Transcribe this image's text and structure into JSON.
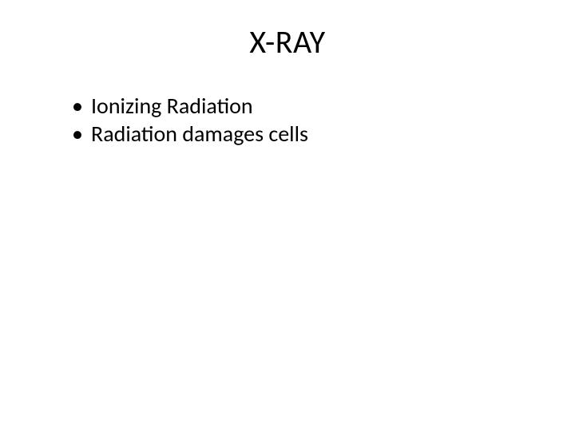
{
  "slide": {
    "title": "X-RAY",
    "bullets": [
      "Ionizing Radiation",
      "Radiation damages cells"
    ],
    "styling": {
      "background_color": "#ffffff",
      "title_color": "#000000",
      "title_fontsize": 40,
      "title_align": "center",
      "bullet_color": "#000000",
      "bullet_fontsize": 28,
      "font_family": "Calibri"
    }
  }
}
